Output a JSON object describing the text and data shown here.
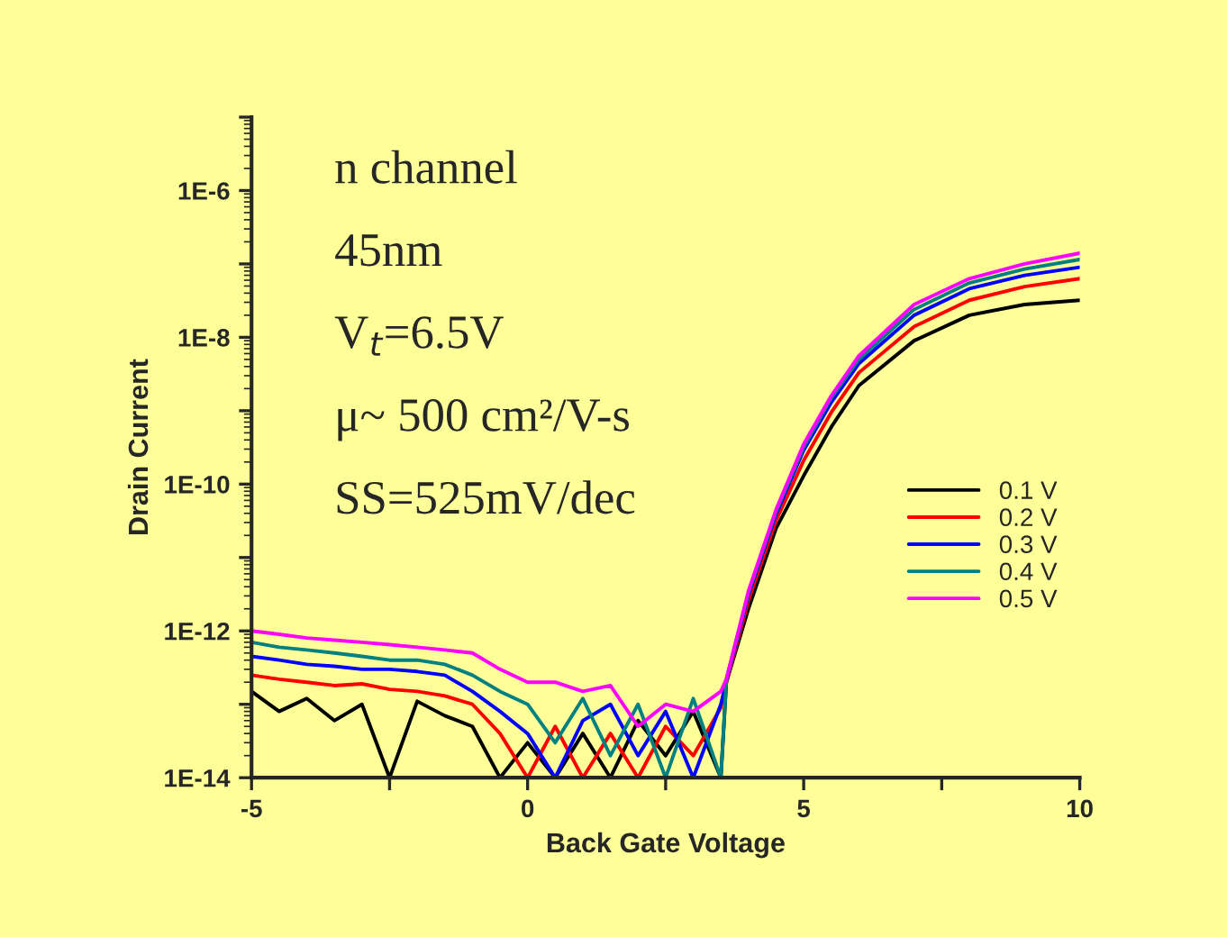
{
  "chart_data": {
    "type": "line",
    "xlabel": "Back Gate Voltage",
    "ylabel": "Drain Current",
    "log": "y",
    "x": [
      -5,
      -4.5,
      -4,
      -3.5,
      -3,
      -2.5,
      -2,
      -1.5,
      -1,
      -0.5,
      0,
      0.5,
      1,
      1.5,
      2,
      2.5,
      3,
      3.5,
      3.6,
      4,
      4.5,
      5,
      5.5,
      6,
      7,
      8,
      9,
      10
    ],
    "series": [
      {
        "name": "0.1 V",
        "color": "#000000",
        "values": [
          1.5e-13,
          8e-14,
          1.2e-13,
          6e-14,
          1e-13,
          1e-14,
          1.1e-13,
          7e-14,
          5e-14,
          1e-14,
          3e-14,
          1e-14,
          4e-14,
          1e-14,
          6e-14,
          2e-14,
          8e-14,
          1e-14,
          2e-13,
          2e-12,
          2.5e-11,
          1.3e-10,
          6e-10,
          2.2e-09,
          9e-09,
          2e-08,
          2.8e-08,
          3.2e-08
        ]
      },
      {
        "name": "0.2 V",
        "color": "#ff0000",
        "values": [
          2.5e-13,
          2.2e-13,
          2e-13,
          1.8e-13,
          1.9e-13,
          1.6e-13,
          1.5e-13,
          1.3e-13,
          1e-13,
          4e-14,
          1e-14,
          5e-14,
          1e-14,
          4e-14,
          1e-14,
          5e-14,
          2e-14,
          9e-14,
          2e-13,
          2.6e-12,
          3.2e-11,
          2.1e-10,
          9.5e-10,
          3.3e-09,
          1.4e-08,
          3.2e-08,
          4.9e-08,
          6.3e-08
        ]
      },
      {
        "name": "0.3 V",
        "color": "#0000ff",
        "values": [
          4.5e-13,
          4e-13,
          3.5e-13,
          3.3e-13,
          3e-13,
          3e-13,
          2.8e-13,
          2.5e-13,
          1.5e-13,
          8e-14,
          4e-14,
          1e-14,
          6e-14,
          1e-13,
          2e-14,
          8e-14,
          1e-14,
          1e-13,
          2.1e-13,
          3.1e-12,
          3.9e-11,
          2.9e-10,
          1.3e-09,
          4.4e-09,
          2e-08,
          4.6e-08,
          7e-08,
          9e-08
        ]
      },
      {
        "name": "0.4 V",
        "color": "#008080",
        "values": [
          7e-13,
          6e-13,
          5.5e-13,
          5e-13,
          4.5e-13,
          4e-13,
          4e-13,
          3.5e-13,
          2.5e-13,
          1.5e-13,
          1e-13,
          3e-14,
          1.2e-13,
          2e-14,
          1e-13,
          1e-14,
          1.2e-13,
          1e-14,
          2.2e-13,
          3.3e-12,
          4.2e-11,
          3.2e-10,
          1.5e-09,
          5e-09,
          2.4e-08,
          5.5e-08,
          8.5e-08,
          1.15e-07
        ]
      },
      {
        "name": "0.5 V",
        "color": "#ff00ff",
        "values": [
          1e-12,
          9e-13,
          8e-13,
          7.5e-13,
          7e-13,
          6.5e-13,
          6e-13,
          5.5e-13,
          5e-13,
          3e-13,
          2e-13,
          2e-13,
          1.5e-13,
          1.8e-13,
          5e-14,
          1e-13,
          8e-14,
          1.5e-13,
          2.2e-13,
          3.5e-12,
          4.5e-11,
          3.5e-10,
          1.6e-09,
          5.6e-09,
          2.8e-08,
          6.3e-08,
          1e-07,
          1.4e-07
        ]
      }
    ],
    "xlim": [
      -5,
      10
    ],
    "xticks": [
      -5,
      {
        "value": -2.5,
        "label": null
      },
      0,
      {
        "value": 2.5,
        "label": null
      },
      5,
      {
        "value": 7.5,
        "label": null
      },
      10
    ],
    "ylim": [
      1e-14,
      1e-05
    ],
    "yticks": [
      {
        "value": 1e-14,
        "label": "1E-14"
      },
      {
        "value": 1e-13,
        "label": null
      },
      {
        "value": 1e-12,
        "label": "1E-12"
      },
      {
        "value": 1e-11,
        "label": null
      },
      {
        "value": 1e-10,
        "label": "1E-10"
      },
      {
        "value": 1e-09,
        "label": null
      },
      {
        "value": 1e-08,
        "label": "1E-8"
      },
      {
        "value": 1e-07,
        "label": null
      },
      {
        "value": 1e-06,
        "label": "1E-6"
      },
      {
        "value": 1e-05,
        "label": null
      }
    ],
    "annotations": [
      "n channel",
      "45nm",
      "V$_{t}$=6.5V",
      "μ~ 500 cm²/V-s",
      "SS=525mV/dec"
    ],
    "legend": "right",
    "grid": false,
    "marker": "none",
    "line_style": "solid"
  }
}
